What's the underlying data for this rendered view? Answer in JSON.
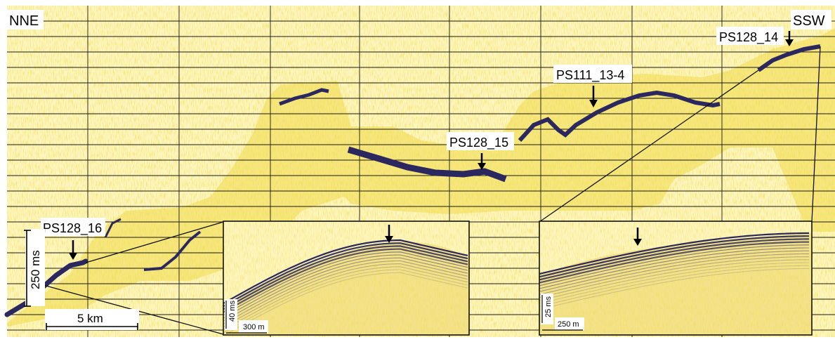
{
  "directions": {
    "left": "NNE",
    "right": "SSW"
  },
  "stations": [
    {
      "label": "PS128_16"
    },
    {
      "label": "PS128_15"
    },
    {
      "label": "PS111_13-4"
    },
    {
      "label": "PS128_14"
    }
  ],
  "main_scale": {
    "vertical_label": "250 ms",
    "horizontal_label": "5 km"
  },
  "inset_left_scale": {
    "vertical_label": "40 ms",
    "horizontal_label": "300 m"
  },
  "inset_right_scale": {
    "vertical_label": "25 ms",
    "horizontal_label": "250 m"
  },
  "colors": {
    "background": "#fdf5bd",
    "grid": "#1a1a1a",
    "signal": "#2b2860",
    "noise": "#e6c830"
  }
}
